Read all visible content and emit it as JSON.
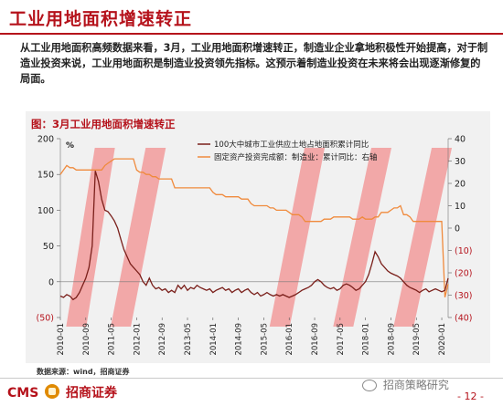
{
  "page": {
    "title": "工业用地面积增速转正",
    "body": "从工业用地面积高频数据来看，3月，工业用地面积增速转正，制造业企业拿地积极性开始提高，对于制造业投资来说，工业用地面积是制造业投资领先指标。这预示着制造业投资在未来将会出现逐渐修复的局面。",
    "source": "数据来源：wind，招商证券",
    "logo_text_left": "CMS",
    "logo_text_right": "招商证券",
    "watermark": "招商策略研究",
    "page_number": "- 12 -"
  },
  "colors": {
    "brand_red": "#b5121b",
    "series1": "#7a1f1a",
    "series2": "#f08a3c",
    "highlight": "#f26b6b"
  },
  "chart_data": {
    "type": "line",
    "title": "图：3月工业用地面积增速转正",
    "x_tick_labels": [
      "2010-01",
      "2010-09",
      "2011-05",
      "2012-01",
      "2012-09",
      "2013-05",
      "2014-01",
      "2014-09",
      "2015-05",
      "2016-01",
      "2016-09",
      "2017-05",
      "2018-01",
      "2018-09",
      "2019-05",
      "2020-01"
    ],
    "x_range": [
      "2010-01",
      "2020-03"
    ],
    "left_axis": {
      "unit": "%",
      "ylim": [
        -50,
        200
      ],
      "ticks": [
        -50,
        0,
        50,
        100,
        150,
        200
      ],
      "tick_labels": [
        "(50)",
        "0",
        "50",
        "100",
        "150",
        "200"
      ]
    },
    "right_axis": {
      "ylim": [
        -40,
        40
      ],
      "ticks": [
        -40,
        -30,
        -20,
        -10,
        0,
        10,
        20,
        30,
        40
      ],
      "tick_labels": [
        "(40)",
        "(30)",
        "(20)",
        "(10)",
        "0",
        "10",
        "20",
        "30",
        "40"
      ]
    },
    "legend_position": "top-right",
    "annotation_bands": [
      {
        "start": "2010-06",
        "end": "2011-03"
      },
      {
        "start": "2011-08",
        "end": "2012-07"
      },
      {
        "start": "2015-10",
        "end": "2016-09"
      },
      {
        "start": "2017-06",
        "end": "2018-06"
      },
      {
        "start": "2019-01",
        "end": "2020-01"
      }
    ],
    "series": [
      {
        "name": "100大中城市工业供应土地占地面积累计同比",
        "axis": "left",
        "points": [
          [
            "2010-01",
            -20
          ],
          [
            "2010-02",
            -22
          ],
          [
            "2010-03",
            -18
          ],
          [
            "2010-04",
            -20
          ],
          [
            "2010-05",
            -25
          ],
          [
            "2010-06",
            -22
          ],
          [
            "2010-07",
            -15
          ],
          [
            "2010-08",
            -5
          ],
          [
            "2010-09",
            5
          ],
          [
            "2010-10",
            20
          ],
          [
            "2010-11",
            50
          ],
          [
            "2010-12",
            155
          ],
          [
            "2011-01",
            140
          ],
          [
            "2011-02",
            115
          ],
          [
            "2011-03",
            100
          ],
          [
            "2011-04",
            98
          ],
          [
            "2011-05",
            92
          ],
          [
            "2011-06",
            85
          ],
          [
            "2011-07",
            75
          ],
          [
            "2011-08",
            60
          ],
          [
            "2011-09",
            45
          ],
          [
            "2011-10",
            35
          ],
          [
            "2011-11",
            25
          ],
          [
            "2011-12",
            20
          ],
          [
            "2012-01",
            15
          ],
          [
            "2012-02",
            10
          ],
          [
            "2012-03",
            0
          ],
          [
            "2012-04",
            -5
          ],
          [
            "2012-05",
            5
          ],
          [
            "2012-06",
            -5
          ],
          [
            "2012-07",
            -10
          ],
          [
            "2012-08",
            -8
          ],
          [
            "2012-09",
            -12
          ],
          [
            "2012-10",
            -10
          ],
          [
            "2012-11",
            -15
          ],
          [
            "2012-12",
            -12
          ],
          [
            "2013-01",
            -15
          ],
          [
            "2013-02",
            -5
          ],
          [
            "2013-03",
            -10
          ],
          [
            "2013-04",
            -5
          ],
          [
            "2013-05",
            -12
          ],
          [
            "2013-06",
            -8
          ],
          [
            "2013-07",
            -10
          ],
          [
            "2013-08",
            -5
          ],
          [
            "2013-09",
            -8
          ],
          [
            "2013-10",
            -10
          ],
          [
            "2013-11",
            -12
          ],
          [
            "2013-12",
            -10
          ],
          [
            "2014-01",
            -15
          ],
          [
            "2014-02",
            -12
          ],
          [
            "2014-03",
            -10
          ],
          [
            "2014-04",
            -8
          ],
          [
            "2014-05",
            -12
          ],
          [
            "2014-06",
            -10
          ],
          [
            "2014-07",
            -15
          ],
          [
            "2014-08",
            -12
          ],
          [
            "2014-09",
            -10
          ],
          [
            "2014-10",
            -15
          ],
          [
            "2014-11",
            -12
          ],
          [
            "2014-12",
            -10
          ],
          [
            "2015-01",
            -15
          ],
          [
            "2015-02",
            -18
          ],
          [
            "2015-03",
            -15
          ],
          [
            "2015-04",
            -20
          ],
          [
            "2015-05",
            -18
          ],
          [
            "2015-06",
            -15
          ],
          [
            "2015-07",
            -18
          ],
          [
            "2015-08",
            -20
          ],
          [
            "2015-09",
            -18
          ],
          [
            "2015-10",
            -20
          ],
          [
            "2015-11",
            -18
          ],
          [
            "2015-12",
            -20
          ],
          [
            "2016-01",
            -22
          ],
          [
            "2016-02",
            -20
          ],
          [
            "2016-03",
            -18
          ],
          [
            "2016-04",
            -15
          ],
          [
            "2016-05",
            -12
          ],
          [
            "2016-06",
            -10
          ],
          [
            "2016-07",
            -8
          ],
          [
            "2016-08",
            -5
          ],
          [
            "2016-09",
            0
          ],
          [
            "2016-10",
            3
          ],
          [
            "2016-11",
            0
          ],
          [
            "2016-12",
            -5
          ],
          [
            "2017-01",
            -8
          ],
          [
            "2017-02",
            -10
          ],
          [
            "2017-03",
            -8
          ],
          [
            "2017-04",
            -12
          ],
          [
            "2017-05",
            -10
          ],
          [
            "2017-06",
            -5
          ],
          [
            "2017-07",
            -3
          ],
          [
            "2017-08",
            -5
          ],
          [
            "2017-09",
            -8
          ],
          [
            "2017-10",
            -12
          ],
          [
            "2017-11",
            -10
          ],
          [
            "2017-12",
            -5
          ],
          [
            "2018-01",
            0
          ],
          [
            "2018-02",
            10
          ],
          [
            "2018-03",
            25
          ],
          [
            "2018-04",
            42
          ],
          [
            "2018-05",
            35
          ],
          [
            "2018-06",
            25
          ],
          [
            "2018-07",
            20
          ],
          [
            "2018-08",
            15
          ],
          [
            "2018-09",
            12
          ],
          [
            "2018-10",
            10
          ],
          [
            "2018-11",
            8
          ],
          [
            "2018-12",
            5
          ],
          [
            "2019-01",
            0
          ],
          [
            "2019-02",
            -5
          ],
          [
            "2019-03",
            -8
          ],
          [
            "2019-04",
            -10
          ],
          [
            "2019-05",
            -12
          ],
          [
            "2019-06",
            -15
          ],
          [
            "2019-07",
            -12
          ],
          [
            "2019-08",
            -10
          ],
          [
            "2019-09",
            -14
          ],
          [
            "2019-10",
            -12
          ],
          [
            "2019-11",
            -10
          ],
          [
            "2019-12",
            -12
          ],
          [
            "2020-01",
            -14
          ],
          [
            "2020-02",
            -12
          ],
          [
            "2020-03",
            5
          ]
        ]
      },
      {
        "name": "固定资产投资完成额：制造业：累计同比：右轴",
        "axis": "right",
        "points": [
          [
            "2010-01",
            24
          ],
          [
            "2010-02",
            26
          ],
          [
            "2010-03",
            28
          ],
          [
            "2010-04",
            27
          ],
          [
            "2010-05",
            27
          ],
          [
            "2010-06",
            26
          ],
          [
            "2010-07",
            26
          ],
          [
            "2010-08",
            26
          ],
          [
            "2010-09",
            26
          ],
          [
            "2010-10",
            26
          ],
          [
            "2010-11",
            26
          ],
          [
            "2010-12",
            26
          ],
          [
            "2011-01",
            26
          ],
          [
            "2011-02",
            26
          ],
          [
            "2011-03",
            28
          ],
          [
            "2011-04",
            29
          ],
          [
            "2011-05",
            30
          ],
          [
            "2011-06",
            31
          ],
          [
            "2011-07",
            31
          ],
          [
            "2011-08",
            31
          ],
          [
            "2011-09",
            31
          ],
          [
            "2011-10",
            31
          ],
          [
            "2011-11",
            31
          ],
          [
            "2011-12",
            31
          ],
          [
            "2012-01",
            26
          ],
          [
            "2012-02",
            25
          ],
          [
            "2012-03",
            25
          ],
          [
            "2012-04",
            24
          ],
          [
            "2012-05",
            24
          ],
          [
            "2012-06",
            23
          ],
          [
            "2012-07",
            23
          ],
          [
            "2012-08",
            22
          ],
          [
            "2012-09",
            22
          ],
          [
            "2012-10",
            22
          ],
          [
            "2012-11",
            22
          ],
          [
            "2012-12",
            22
          ],
          [
            "2013-01",
            18
          ],
          [
            "2013-02",
            18
          ],
          [
            "2013-03",
            18
          ],
          [
            "2013-04",
            18
          ],
          [
            "2013-05",
            18
          ],
          [
            "2013-06",
            18
          ],
          [
            "2013-07",
            18
          ],
          [
            "2013-08",
            18
          ],
          [
            "2013-09",
            18
          ],
          [
            "2013-10",
            18
          ],
          [
            "2013-11",
            18
          ],
          [
            "2013-12",
            18
          ],
          [
            "2014-01",
            16
          ],
          [
            "2014-02",
            15
          ],
          [
            "2014-03",
            15
          ],
          [
            "2014-04",
            15
          ],
          [
            "2014-05",
            14
          ],
          [
            "2014-06",
            14
          ],
          [
            "2014-07",
            14
          ],
          [
            "2014-08",
            14
          ],
          [
            "2014-09",
            14
          ],
          [
            "2014-10",
            13
          ],
          [
            "2014-11",
            13
          ],
          [
            "2014-12",
            13
          ],
          [
            "2015-01",
            11
          ],
          [
            "2015-02",
            10
          ],
          [
            "2015-03",
            10
          ],
          [
            "2015-04",
            10
          ],
          [
            "2015-05",
            10
          ],
          [
            "2015-06",
            10
          ],
          [
            "2015-07",
            9
          ],
          [
            "2015-08",
            9
          ],
          [
            "2015-09",
            8
          ],
          [
            "2015-10",
            8
          ],
          [
            "2015-11",
            8
          ],
          [
            "2015-12",
            8
          ],
          [
            "2016-01",
            7
          ],
          [
            "2016-02",
            6
          ],
          [
            "2016-03",
            6
          ],
          [
            "2016-04",
            6
          ],
          [
            "2016-05",
            5
          ],
          [
            "2016-06",
            3
          ],
          [
            "2016-07",
            3
          ],
          [
            "2016-08",
            3
          ],
          [
            "2016-09",
            3
          ],
          [
            "2016-10",
            3
          ],
          [
            "2016-11",
            3
          ],
          [
            "2016-12",
            4
          ],
          [
            "2017-01",
            4
          ],
          [
            "2017-02",
            4
          ],
          [
            "2017-03",
            5
          ],
          [
            "2017-04",
            5
          ],
          [
            "2017-05",
            5
          ],
          [
            "2017-06",
            5
          ],
          [
            "2017-07",
            5
          ],
          [
            "2017-08",
            5
          ],
          [
            "2017-09",
            4
          ],
          [
            "2017-10",
            4
          ],
          [
            "2017-11",
            4
          ],
          [
            "2017-12",
            5
          ],
          [
            "2018-01",
            4
          ],
          [
            "2018-02",
            4
          ],
          [
            "2018-03",
            4
          ],
          [
            "2018-04",
            5
          ],
          [
            "2018-05",
            5
          ],
          [
            "2018-06",
            7
          ],
          [
            "2018-07",
            7
          ],
          [
            "2018-08",
            7
          ],
          [
            "2018-09",
            8
          ],
          [
            "2018-10",
            9
          ],
          [
            "2018-11",
            9
          ],
          [
            "2018-12",
            10
          ],
          [
            "2019-01",
            6
          ],
          [
            "2019-02",
            6
          ],
          [
            "2019-03",
            5
          ],
          [
            "2019-04",
            3
          ],
          [
            "2019-05",
            3
          ],
          [
            "2019-06",
            3
          ],
          [
            "2019-07",
            3
          ],
          [
            "2019-08",
            3
          ],
          [
            "2019-09",
            3
          ],
          [
            "2019-10",
            3
          ],
          [
            "2019-11",
            3
          ],
          [
            "2019-12",
            3
          ],
          [
            "2020-01",
            3
          ],
          [
            "2020-02",
            -31
          ],
          [
            "2020-03",
            -25
          ]
        ]
      }
    ]
  }
}
